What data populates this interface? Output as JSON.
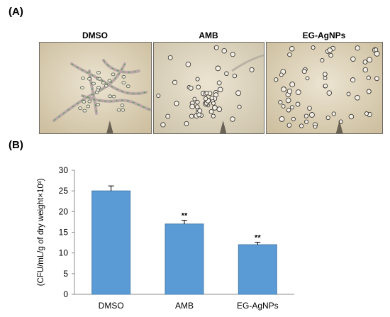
{
  "figure": {
    "panel_a_label": "(A)",
    "panel_b_label": "(B)",
    "images": [
      {
        "title": "DMSO",
        "subject": "fungal hyphae and cells stained green",
        "color": "#cdbf9f"
      },
      {
        "title": "AMB",
        "subject": "clustered yeast cells",
        "color": "#cfc5ad"
      },
      {
        "title": "EG-AgNPs",
        "subject": "scattered yeast cells",
        "color": "#cdbf9f"
      }
    ]
  },
  "chart_data": {
    "type": "bar",
    "categories": [
      "DMSO",
      "AMB",
      "EG-AgNPs"
    ],
    "values": [
      25,
      17,
      12
    ],
    "error": [
      1.2,
      0.9,
      0.6
    ],
    "significance": [
      "",
      "**",
      "**"
    ],
    "ylabel": "(CFU/mL/g of dry weight×10³)",
    "ylim": [
      0,
      30
    ],
    "yticks": [
      0,
      5,
      10,
      15,
      20,
      25,
      30
    ],
    "grid": false,
    "bar_color": "#5b9bd5",
    "bar_edge_color": "#4a7fb0"
  }
}
